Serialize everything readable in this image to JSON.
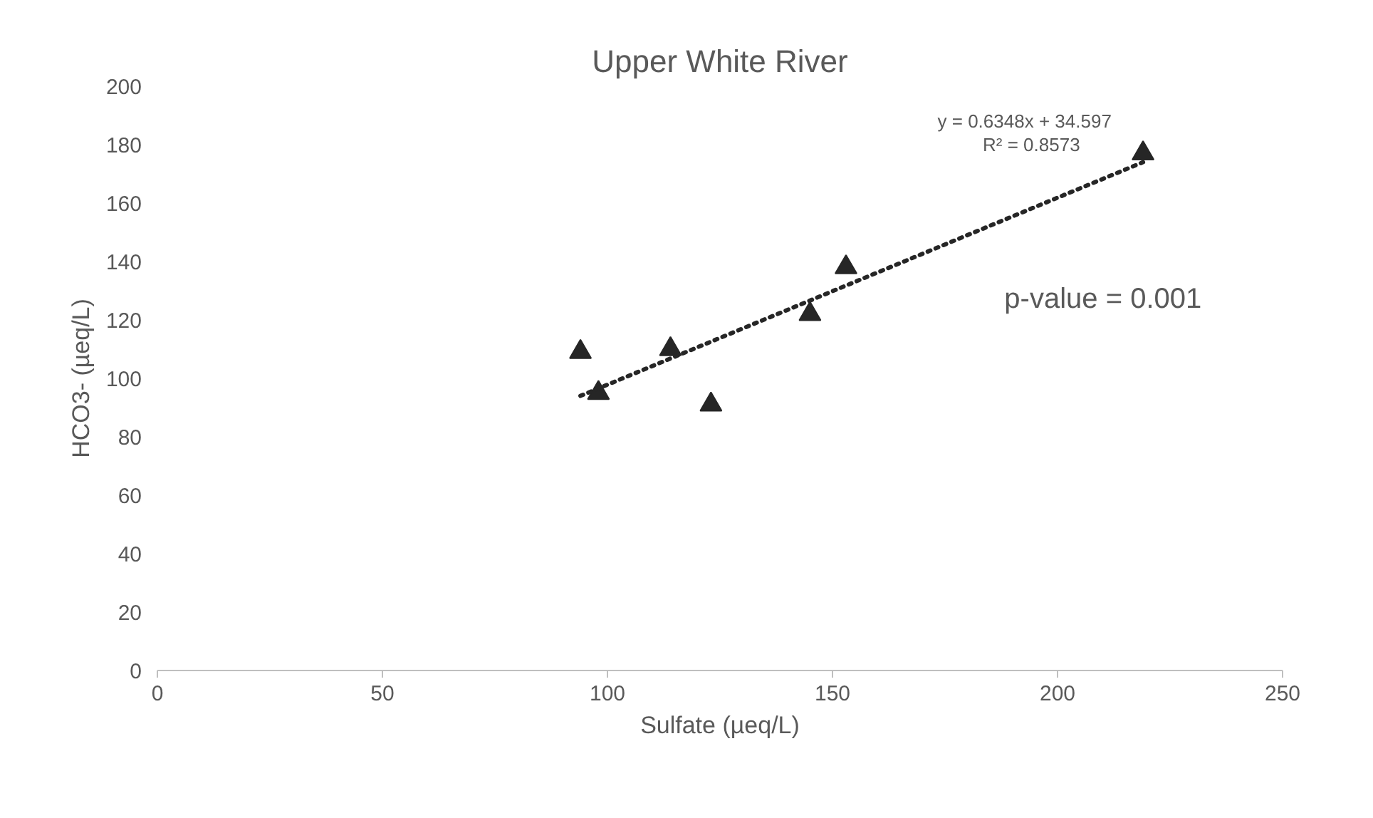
{
  "chart_data": {
    "type": "scatter",
    "title": "Upper White River",
    "xlabel": "Sulfate (µeq/L)",
    "ylabel": "HCO3- (µeq/L)",
    "xlim": [
      0,
      250
    ],
    "xticks": [
      0,
      50,
      100,
      150,
      200,
      250
    ],
    "ylim": [
      0,
      200
    ],
    "yticks": [
      0,
      20,
      40,
      60,
      80,
      100,
      120,
      140,
      160,
      180,
      200
    ],
    "grid": false,
    "marker": "triangle",
    "series": [
      {
        "color": "#262626",
        "x": [
          94,
          98,
          114,
          123,
          145,
          153,
          219
        ],
        "values": [
          109,
          95,
          110,
          91,
          122,
          138,
          177
        ]
      },
      {
        "type": "line",
        "color": "#262626",
        "line_style": "dotted",
        "marker": "none",
        "x": [
          94,
          219
        ],
        "values": [
          94,
          174
        ]
      }
    ],
    "annotations": [
      "y = 0.6348x + 34.597",
      "R² = 0.8573",
      "p-value = 0.001"
    ]
  }
}
